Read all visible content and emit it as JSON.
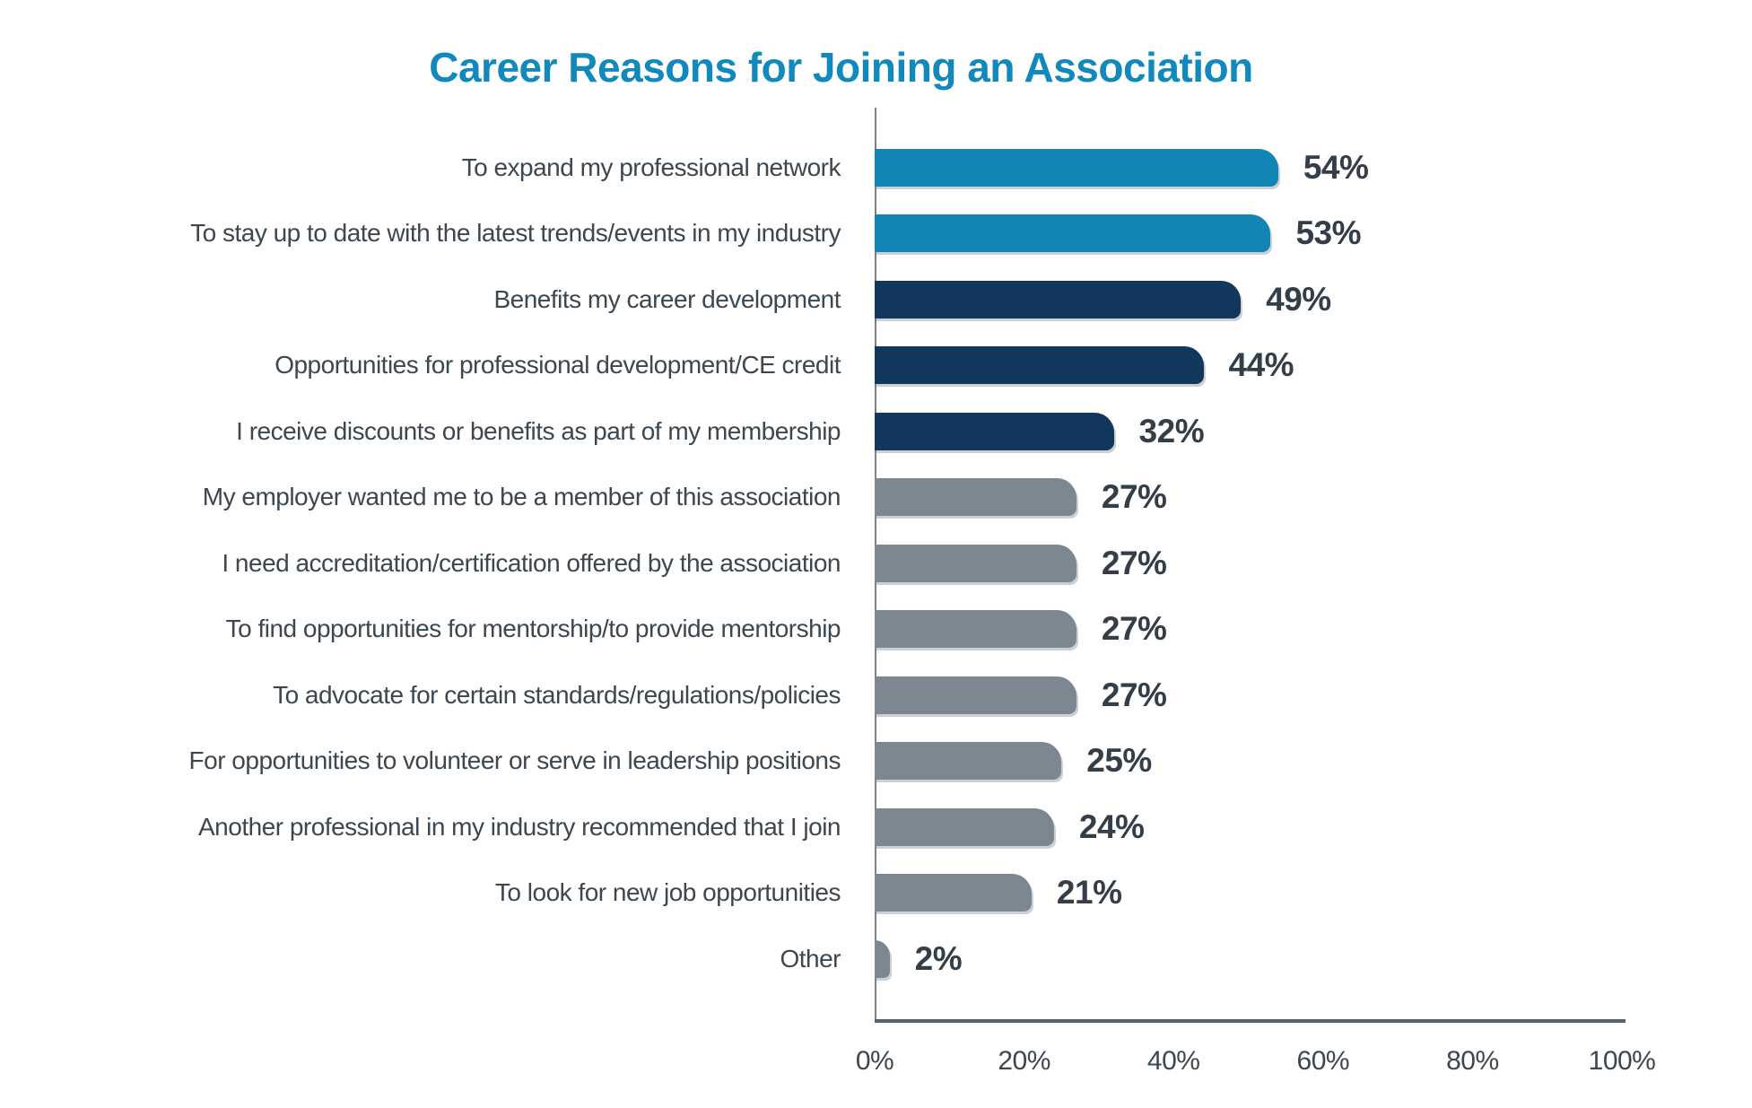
{
  "title": "Career Reasons for Joining an Association",
  "colors": {
    "title": "#1289BC",
    "bar_teal": "#1385B4",
    "bar_navy": "#12375C",
    "bar_gray": "#7D8791",
    "value_text": "#333E48",
    "category_text": "#3C4750",
    "x_axis_line": "#59626B",
    "y_axis_line": "#79828A",
    "background": "#FFFFFF"
  },
  "chart_data": {
    "type": "bar",
    "orientation": "horizontal",
    "title": "Career Reasons for Joining an Association",
    "categories": [
      "To expand my professional network",
      "To stay up to date with the latest trends/events in my industry",
      "Benefits my career development",
      "Opportunities for professional development/CE credit",
      "I receive discounts or benefits as part of my membership",
      "My employer wanted me to be a member of this association",
      "I need accreditation/certification offered by the association",
      "To find opportunities for mentorship/to provide mentorship",
      "To advocate for certain standards/regulations/policies",
      "For opportunities to volunteer or serve in leadership positions",
      "Another professional in my industry recommended that I join",
      "To look for new job opportunities",
      "Other"
    ],
    "values": [
      54,
      53,
      49,
      44,
      32,
      27,
      27,
      27,
      27,
      25,
      24,
      21,
      2
    ],
    "value_labels": [
      "54%",
      "53%",
      "49%",
      "44%",
      "32%",
      "27%",
      "27%",
      "27%",
      "27%",
      "25%",
      "24%",
      "21%",
      "2%"
    ],
    "bar_colors": [
      "#1385B4",
      "#1385B4",
      "#12375C",
      "#12375C",
      "#12375C",
      "#7D8791",
      "#7D8791",
      "#7D8791",
      "#7D8791",
      "#7D8791",
      "#7D8791",
      "#7D8791",
      "#7D8791"
    ],
    "xlabel": "",
    "ylabel": "",
    "xlim": [
      0,
      100
    ],
    "x_ticks": [
      "0%",
      "20%",
      "40%",
      "60%",
      "80%",
      "100%"
    ],
    "x_tick_values": [
      0,
      20,
      40,
      60,
      80,
      100
    ],
    "grid": false,
    "legend": false
  }
}
